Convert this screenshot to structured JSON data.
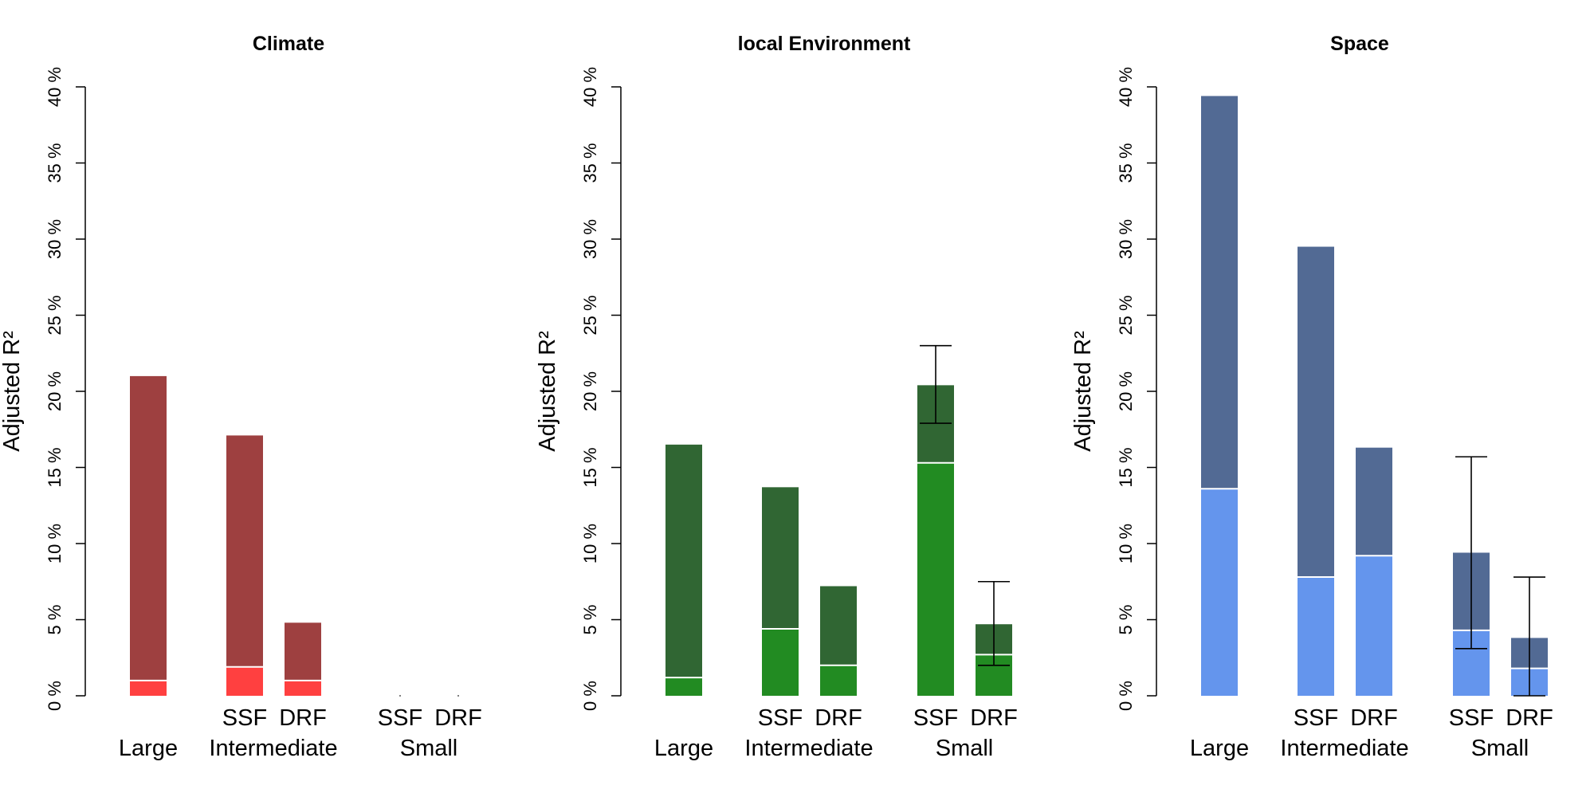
{
  "chart_data": [
    {
      "type": "bar",
      "title": "Climate",
      "ylabel": "Adjusted R²",
      "ylim": [
        0,
        40
      ],
      "yticks": [
        "0 %",
        "5 %",
        "10 %",
        "15 %",
        "20 %",
        "25 %",
        "30 %",
        "35 %",
        "40 %"
      ],
      "groups": [
        "Large",
        "Intermediate",
        "Small"
      ],
      "bar_labels": [
        "",
        "SSF",
        "DRF",
        "SSF",
        "DRF"
      ],
      "colors": {
        "lower": "#FF4040",
        "upper": "#9E4040"
      },
      "series": [
        {
          "values": [
            1.0,
            1.9,
            1.0,
            0.0,
            0.0
          ]
        },
        {
          "values": [
            21.0,
            17.1,
            4.8,
            0.0,
            0.0
          ]
        }
      ],
      "error_bars": [
        null,
        null,
        null,
        null,
        null
      ]
    },
    {
      "type": "bar",
      "title": "local Environment",
      "ylabel": "Adjusted R²",
      "ylim": [
        0,
        40
      ],
      "yticks": [
        "0 %",
        "5 %",
        "10 %",
        "15 %",
        "20 %",
        "25 %",
        "30 %",
        "35 %",
        "40 %"
      ],
      "groups": [
        "Large",
        "Intermediate",
        "Small"
      ],
      "bar_labels": [
        "",
        "SSF",
        "DRF",
        "SSF",
        "DRF"
      ],
      "colors": {
        "lower": "#228B22",
        "upper": "#306633"
      },
      "series": [
        {
          "values": [
            1.2,
            4.4,
            2.0,
            15.3,
            2.7
          ]
        },
        {
          "values": [
            16.5,
            13.7,
            7.2,
            20.4,
            4.7
          ]
        }
      ],
      "error_bars": [
        null,
        null,
        null,
        [
          17.9,
          23.0
        ],
        [
          2.0,
          7.5
        ]
      ]
    },
    {
      "type": "bar",
      "title": "Space",
      "ylabel": "Adjusted R²",
      "ylim": [
        0,
        40
      ],
      "yticks": [
        "0 %",
        "5 %",
        "10 %",
        "15 %",
        "20 %",
        "25 %",
        "30 %",
        "35 %",
        "40 %"
      ],
      "groups": [
        "Large",
        "Intermediate",
        "Small"
      ],
      "bar_labels": [
        "",
        "SSF",
        "DRF",
        "SSF",
        "DRF"
      ],
      "colors": {
        "lower": "#6495ED",
        "upper": "#526A94"
      },
      "series": [
        {
          "values": [
            13.6,
            7.8,
            9.2,
            4.3,
            1.8
          ]
        },
        {
          "values": [
            39.4,
            29.5,
            16.3,
            9.4,
            3.8
          ]
        }
      ],
      "error_bars": [
        null,
        null,
        null,
        [
          3.1,
          15.7
        ],
        [
          0.0,
          7.8
        ]
      ]
    }
  ]
}
